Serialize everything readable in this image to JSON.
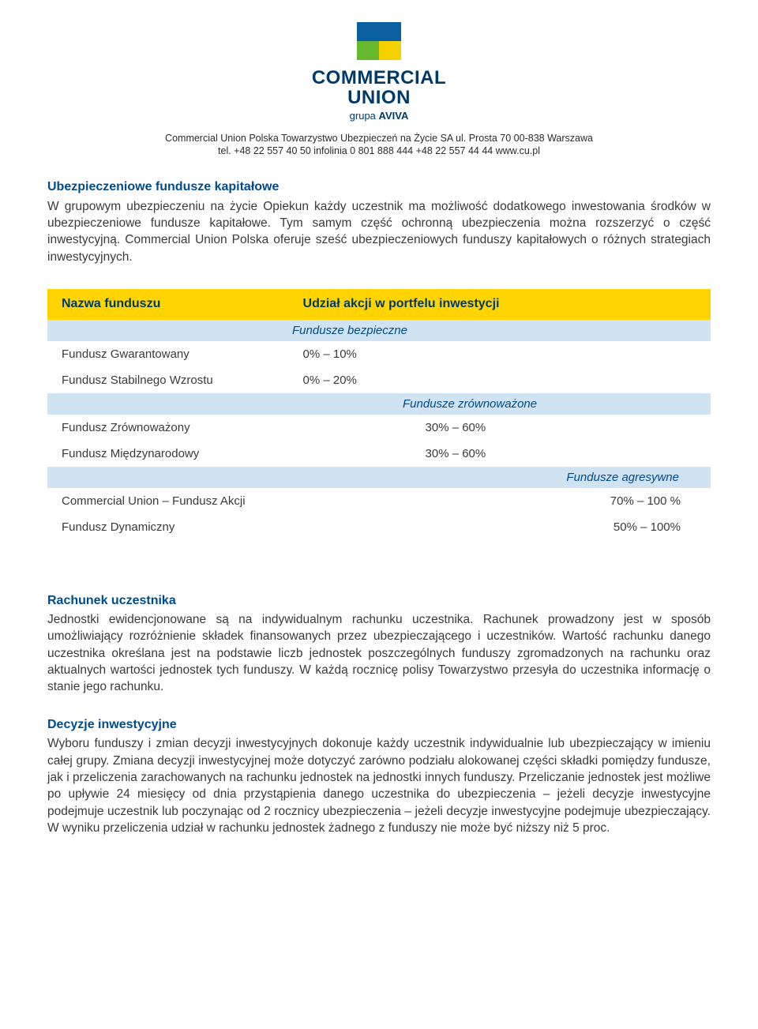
{
  "logo": {
    "line1": "COMMERCIAL",
    "line2": "UNION",
    "line3_prefix": "grupa ",
    "line3_brand": "AVIVA",
    "colors": {
      "top": "#0a5fa3",
      "bl": "#66b82e",
      "br": "#f6d100",
      "text": "#003a6a"
    }
  },
  "address": {
    "line1": "Commercial Union Polska Towarzystwo Ubezpieczeń na Życie SA  ul. Prosta 70  00-838 Warszawa",
    "line2": "tel. +48 22 557 40 50  infolinia 0 801 888 444  +48 22 557 44 44  www.cu.pl"
  },
  "section1": {
    "title": "Ubezpieczeniowe fundusze kapitałowe",
    "body": "W grupowym ubezpieczeniu na życie Opiekun każdy uczestnik ma możliwość dodatkowego inwestowania środków w ubezpieczeniowe fundusze kapitałowe. Tym samym część ochronną ubezpieczenia można rozszerzyć o część inwestycyjną. Commercial Union Polska oferuje sześć ubezpieczeniowych funduszy kapitałowych o różnych strategiach inwestycyjnych."
  },
  "table": {
    "header_left": "Nazwa funduszu",
    "header_right": "Udział akcji w portfelu inwestycji",
    "cat_safe": "Fundusze bezpieczne",
    "cat_balanced": "Fundusze zrównoważone",
    "cat_aggressive": "Fundusze agresywne",
    "rows": {
      "gwarantowany": {
        "name": "Fundusz Gwarantowany",
        "val": "0% – 10%"
      },
      "stabilny": {
        "name": "Fundusz Stabilnego Wzrostu",
        "val": "0% – 20%"
      },
      "zrownowazony": {
        "name": "Fundusz Zrównoważony",
        "val": "30% – 60%"
      },
      "miedzynarodowy": {
        "name": "Fundusz Międzynarodowy",
        "val": "30% – 60%"
      },
      "akcji": {
        "name": "Commercial Union – Fundusz Akcji",
        "val": "70% – 100 %"
      },
      "dynamiczny": {
        "name": "Fundusz Dynamiczny",
        "val": "50% – 100%"
      }
    },
    "colors": {
      "header_bg": "#ffd400",
      "header_fg": "#003a6a",
      "cat_bg": "#cfe3f3",
      "cat_fg": "#004b8d"
    }
  },
  "section2": {
    "title": "Rachunek uczestnika",
    "body": "Jednostki ewidencjonowane są na indywidualnym rachunku uczestnika. Rachunek prowadzony jest w sposób umożliwiający rozróżnienie składek finansowanych przez ubezpieczającego i uczestników. Wartość rachunku danego uczestnika określana jest na podstawie liczb jednostek poszczególnych funduszy zgromadzonych na rachunku oraz aktualnych wartości jednostek tych funduszy. W każdą rocznicę polisy Towarzystwo przesyła do uczestnika informację o stanie jego rachunku."
  },
  "section3": {
    "title": "Decyzje inwestycyjne",
    "body": "Wyboru funduszy i zmian decyzji inwestycyjnych dokonuje każdy uczestnik indywidualnie lub ubezpieczający w imieniu całej grupy. Zmiana decyzji inwestycyjnej może dotyczyć zarówno podziału alokowanej części składki pomiędzy fundusze, jak i przeliczenia zarachowanych na rachunku jednostek na jednostki innych funduszy. Przeliczanie jednostek jest możliwe po upływie 24 miesięcy od dnia przystąpienia danego uczestnika do ubezpieczenia – jeżeli decyzje inwestycyjne podejmuje uczestnik lub poczynając od 2 rocznicy ubezpieczenia – jeżeli decyzje inwestycyjne podejmuje ubezpieczający. W wyniku przeliczenia udział w rachunku jednostek żadnego z funduszy nie może być niższy niż 5 proc."
  }
}
